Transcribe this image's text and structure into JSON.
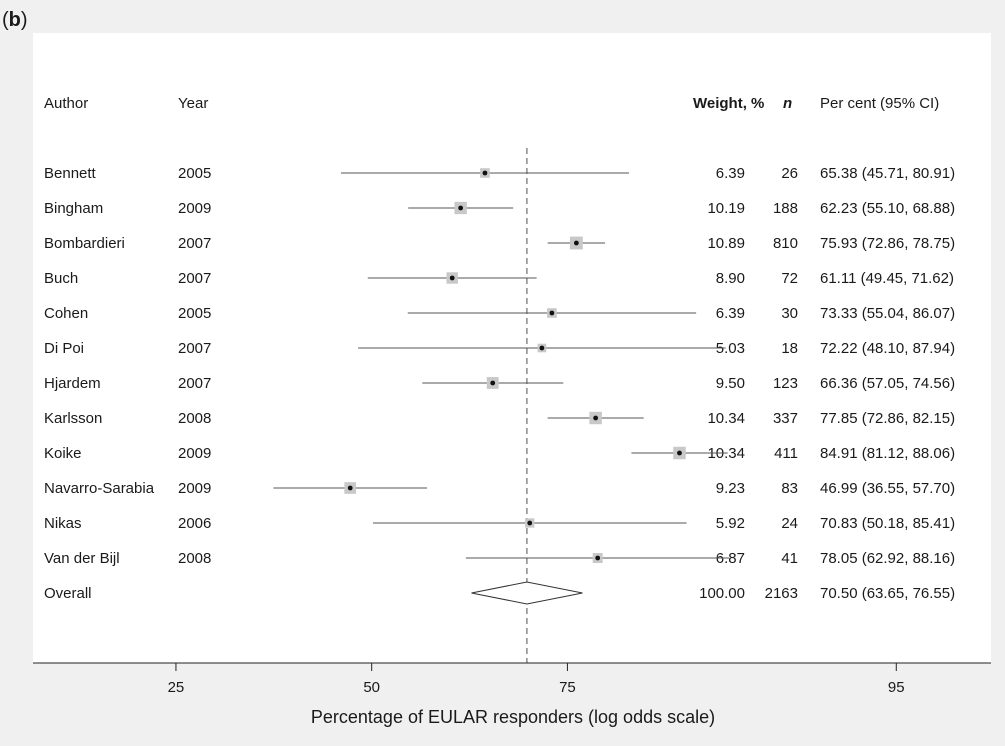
{
  "panel_label": "(b)",
  "headers": {
    "author": "Author",
    "year": "Year",
    "weight": "Weight, %",
    "n": "n",
    "ci": "Per cent (95% CI)"
  },
  "colors": {
    "page_bg": "#f0f0f0",
    "plot_bg": "#ffffff",
    "weight_box": "#c8c8c8",
    "point": "#111111",
    "line": "#555555",
    "reference_line": "#777777"
  },
  "chart_data": {
    "type": "forest",
    "scale": "log odds",
    "xlabel": "Percentage of EULAR responders (log odds scale)",
    "xticks": [
      25,
      50,
      75,
      95
    ],
    "xlim": [
      13,
      97
    ],
    "reference_value": 70.5,
    "studies": [
      {
        "author": "Bennett",
        "year": "2005",
        "weight": "6.39",
        "weight_value": 6.39,
        "n": "26",
        "ci_text": "65.38 (45.71, 80.91)",
        "estimate": 65.38,
        "lower": 45.71,
        "upper": 80.91
      },
      {
        "author": "Bingham",
        "year": "2009",
        "weight": "10.19",
        "weight_value": 10.19,
        "n": "188",
        "ci_text": "62.23 (55.10, 68.88)",
        "estimate": 62.23,
        "lower": 55.1,
        "upper": 68.88
      },
      {
        "author": "Bombardieri",
        "year": "2007",
        "weight": "10.89",
        "weight_value": 10.89,
        "n": "810",
        "ci_text": "75.93 (72.86, 78.75)",
        "estimate": 75.93,
        "lower": 72.86,
        "upper": 78.75
      },
      {
        "author": "Buch",
        "year": "2007",
        "weight": "8.90",
        "weight_value": 8.9,
        "n": "72",
        "ci_text": "61.11 (49.45, 71.62)",
        "estimate": 61.11,
        "lower": 49.45,
        "upper": 71.62
      },
      {
        "author": "Cohen",
        "year": "2005",
        "weight": "6.39",
        "weight_value": 6.39,
        "n": "30",
        "ci_text": "73.33 (55.04, 86.07)",
        "estimate": 73.33,
        "lower": 55.04,
        "upper": 86.07
      },
      {
        "author": "Di Poi",
        "year": "2007",
        "weight": "5.03",
        "weight_value": 5.03,
        "n": "18",
        "ci_text": "72.22 (48.10, 87.94)",
        "estimate": 72.22,
        "lower": 48.1,
        "upper": 87.94
      },
      {
        "author": "Hjardem",
        "year": "2007",
        "weight": "9.50",
        "weight_value": 9.5,
        "n": "123",
        "ci_text": "66.36 (57.05, 74.56)",
        "estimate": 66.36,
        "lower": 57.05,
        "upper": 74.56
      },
      {
        "author": "Karlsson",
        "year": "2008",
        "weight": "10.34",
        "weight_value": 10.34,
        "n": "337",
        "ci_text": "77.85 (72.86, 82.15)",
        "estimate": 77.85,
        "lower": 72.86,
        "upper": 82.15
      },
      {
        "author": "Koike",
        "year": "2009",
        "weight": "10.34",
        "weight_value": 10.34,
        "n": "411",
        "ci_text": "84.91 (81.12, 88.06)",
        "estimate": 84.91,
        "lower": 81.12,
        "upper": 88.06
      },
      {
        "author": "Navarro-Sarabia",
        "year": "2009",
        "weight": "9.23",
        "weight_value": 9.23,
        "n": "83",
        "ci_text": "46.99 (36.55, 57.70)",
        "estimate": 46.99,
        "lower": 36.55,
        "upper": 57.7
      },
      {
        "author": "Nikas",
        "year": "2006",
        "weight": "5.92",
        "weight_value": 5.92,
        "n": "24",
        "ci_text": "70.83 (50.18, 85.41)",
        "estimate": 70.83,
        "lower": 50.18,
        "upper": 85.41
      },
      {
        "author": "Van der Bijl",
        "year": "2008",
        "weight": "6.87",
        "weight_value": 6.87,
        "n": "41",
        "ci_text": "78.05 (62.92, 88.16)",
        "estimate": 78.05,
        "lower": 62.92,
        "upper": 88.16
      }
    ],
    "overall": {
      "author": "Overall",
      "year": "",
      "weight": "100.00",
      "n": "2163",
      "ci_text": "70.50 (63.65, 76.55)",
      "estimate": 70.5,
      "lower": 63.65,
      "upper": 76.55
    }
  }
}
